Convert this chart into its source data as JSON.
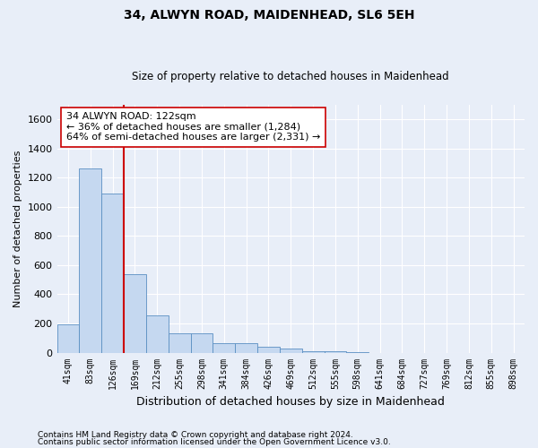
{
  "title1": "34, ALWYN ROAD, MAIDENHEAD, SL6 5EH",
  "title2": "Size of property relative to detached houses in Maidenhead",
  "xlabel": "Distribution of detached houses by size in Maidenhead",
  "ylabel": "Number of detached properties",
  "categories": [
    "41sqm",
    "83sqm",
    "126sqm",
    "169sqm",
    "212sqm",
    "255sqm",
    "298sqm",
    "341sqm",
    "384sqm",
    "426sqm",
    "469sqm",
    "512sqm",
    "555sqm",
    "598sqm",
    "641sqm",
    "684sqm",
    "727sqm",
    "769sqm",
    "812sqm",
    "855sqm",
    "898sqm"
  ],
  "values": [
    195,
    1265,
    1090,
    540,
    255,
    130,
    130,
    65,
    65,
    40,
    30,
    10,
    10,
    5,
    0,
    0,
    0,
    0,
    0,
    0,
    0
  ],
  "bar_color": "#c5d8f0",
  "bar_edge_color": "#5a8fc2",
  "vline_color": "#cc0000",
  "vline_pos": 2.5,
  "annotation_text": "34 ALWYN ROAD: 122sqm\n← 36% of detached houses are smaller (1,284)\n64% of semi-detached houses are larger (2,331) →",
  "annotation_box_facecolor": "#ffffff",
  "annotation_box_edgecolor": "#cc0000",
  "footnote1": "Contains HM Land Registry data © Crown copyright and database right 2024.",
  "footnote2": "Contains public sector information licensed under the Open Government Licence v3.0.",
  "ylim": [
    0,
    1700
  ],
  "yticks": [
    0,
    200,
    400,
    600,
    800,
    1000,
    1200,
    1400,
    1600
  ],
  "bg_color": "#e8eef8",
  "grid_color": "#ffffff",
  "title1_fontsize": 10,
  "title2_fontsize": 8.5,
  "ylabel_fontsize": 8,
  "xlabel_fontsize": 9,
  "tick_fontsize": 7,
  "footnote_fontsize": 6.5
}
